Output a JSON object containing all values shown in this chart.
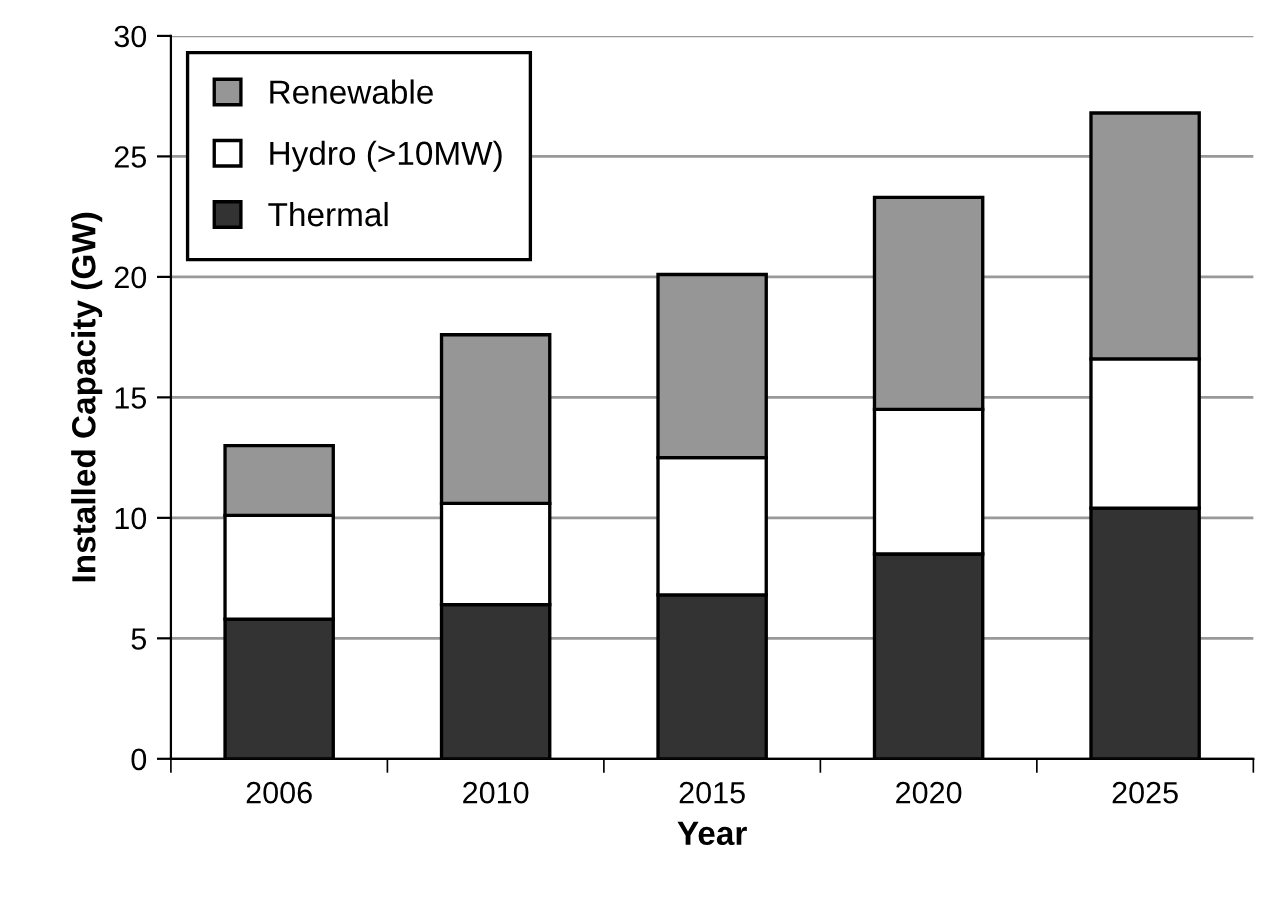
{
  "chart_data": {
    "type": "bar",
    "stacked": true,
    "xlabel": "Year",
    "ylabel": "Installed Capacity (GW)",
    "categories": [
      "2006",
      "2010",
      "2015",
      "2020",
      "2025"
    ],
    "series": [
      {
        "name": "Thermal",
        "color": "#333333",
        "values": [
          5.8,
          6.4,
          6.8,
          8.5,
          10.4
        ]
      },
      {
        "name": "Hydro (>10MW)",
        "color": "#ffffff",
        "values": [
          4.3,
          4.2,
          5.7,
          6.0,
          6.2
        ]
      },
      {
        "name": "Renewable",
        "color": "#969696",
        "values": [
          2.9,
          7.0,
          7.6,
          8.8,
          10.2
        ]
      }
    ],
    "ylim": [
      0,
      30
    ],
    "yticks": [
      0,
      5,
      10,
      15,
      20,
      25,
      30
    ],
    "grid": "y",
    "legend": "top left"
  }
}
